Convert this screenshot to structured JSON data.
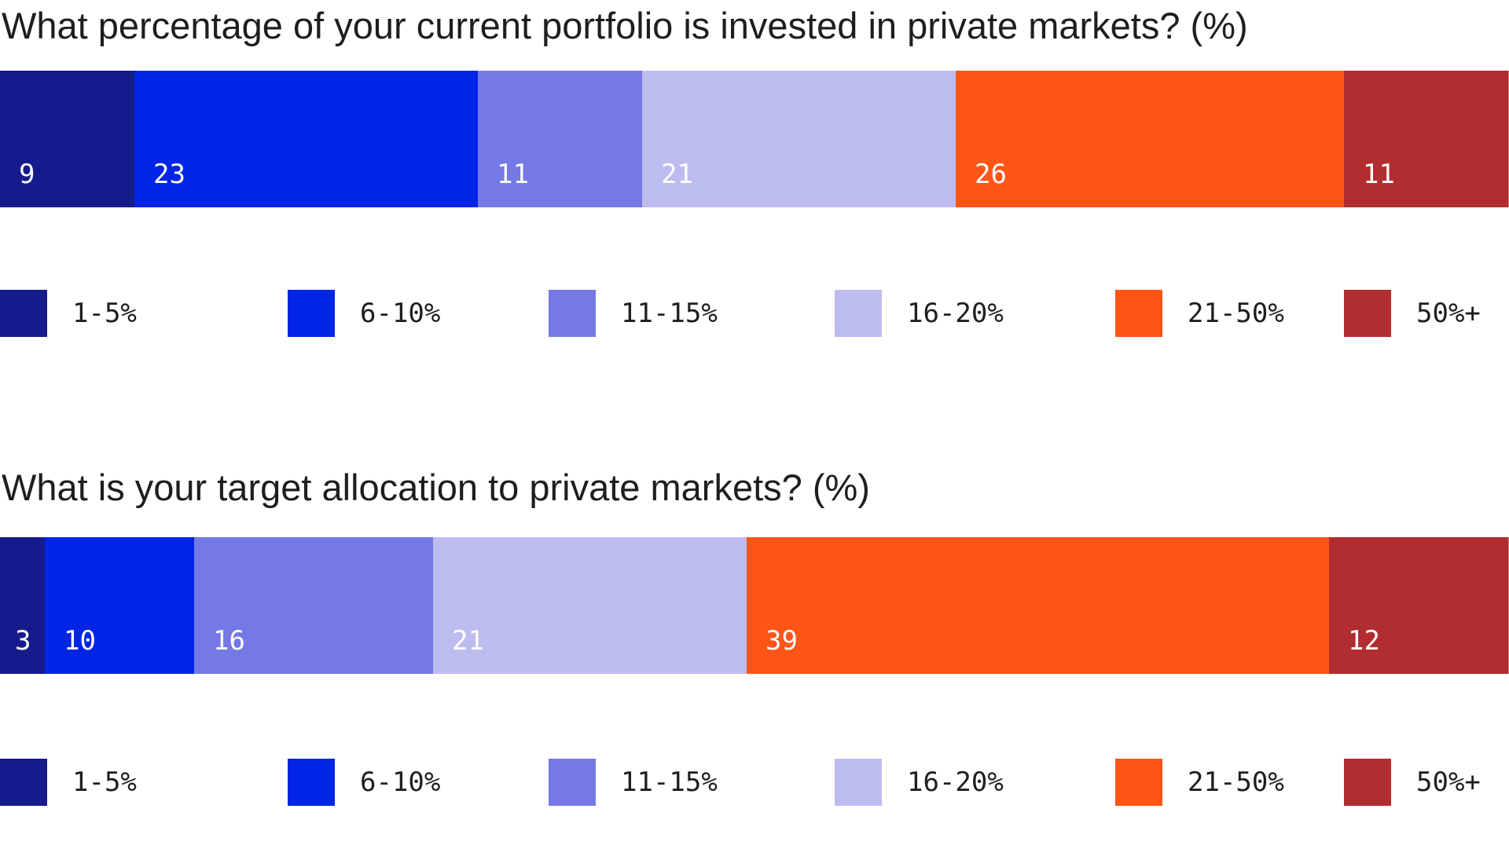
{
  "chart_data": [
    {
      "type": "bar",
      "orientation": "horizontal-stacked-100",
      "title": "What percentage of your current portfolio is invested in private markets? (%)",
      "series": [
        {
          "name": "1-5%",
          "value": 9,
          "color": "#161b8c"
        },
        {
          "name": "6-10%",
          "value": 23,
          "color": "#0025e5"
        },
        {
          "name": "11-15%",
          "value": 11,
          "color": "#7479e6"
        },
        {
          "name": "16-20%",
          "value": 21,
          "color": "#bcbcf0"
        },
        {
          "name": "21-50%",
          "value": 26,
          "color": "#ff5517"
        },
        {
          "name": "50%+",
          "value": 11,
          "color": "#b22d2f"
        }
      ],
      "legend_position": "bottom",
      "grid": false
    },
    {
      "type": "bar",
      "orientation": "horizontal-stacked-100",
      "title": "What is your target allocation to private markets? (%)",
      "series": [
        {
          "name": "1-5%",
          "value": 3,
          "color": "#161b8c"
        },
        {
          "name": "6-10%",
          "value": 10,
          "color": "#0025e5"
        },
        {
          "name": "11-15%",
          "value": 16,
          "color": "#7479e6"
        },
        {
          "name": "16-20%",
          "value": 21,
          "color": "#bcbcf0"
        },
        {
          "name": "21-50%",
          "value": 39,
          "color": "#ff5517"
        },
        {
          "name": "50%+",
          "value": 12,
          "color": "#b22d2f"
        }
      ],
      "legend_position": "bottom",
      "grid": false
    }
  ],
  "label_color": "#ffffff",
  "text_color": "#1e1e1e"
}
